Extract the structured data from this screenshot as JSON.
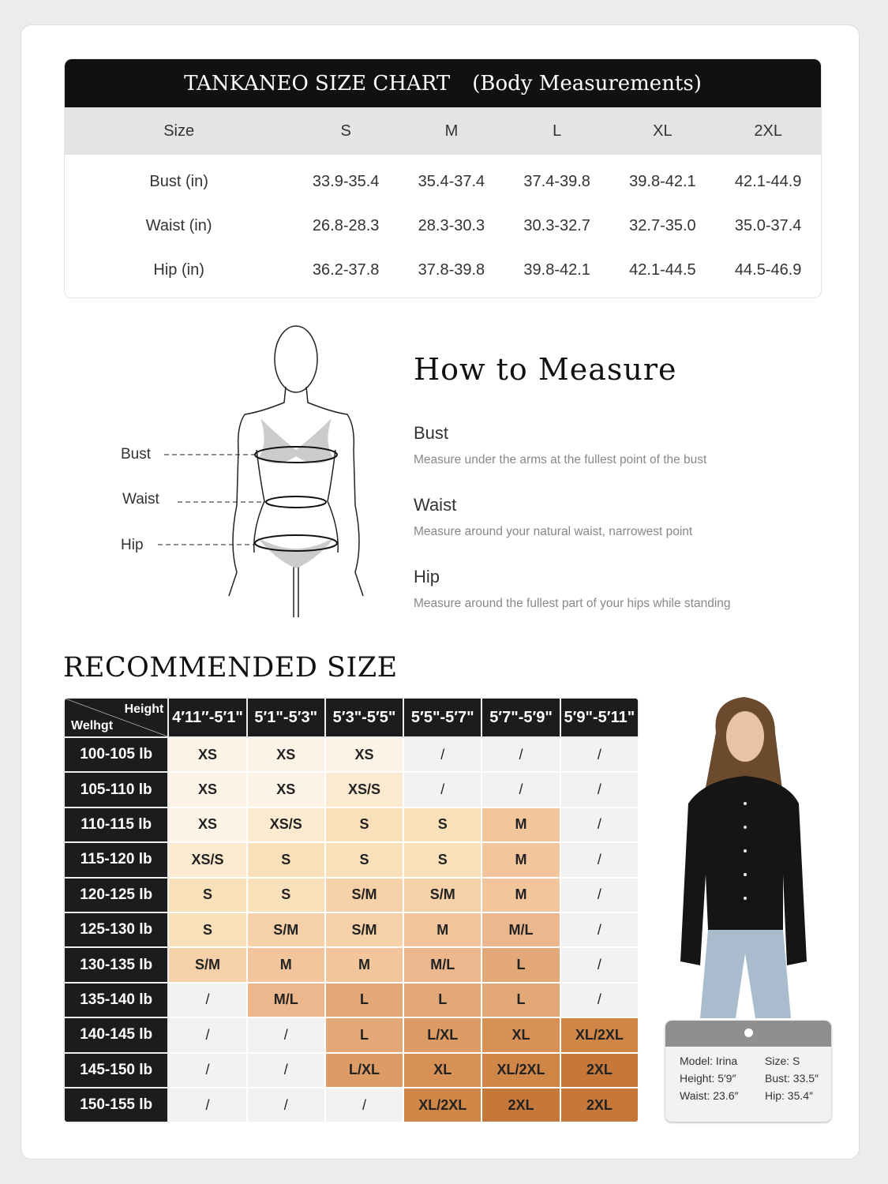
{
  "size_chart": {
    "brand": "TANKANEO SIZE CHART",
    "subtitle": "(Body Measurements)",
    "headers": [
      "Size",
      "S",
      "M",
      "L",
      "XL",
      "2XL"
    ],
    "rows": [
      [
        "Bust (in)",
        "33.9-35.4",
        "35.4-37.4",
        "37.4-39.8",
        "39.8-42.1",
        "42.1-44.9"
      ],
      [
        "Waist (in)",
        "26.8-28.3",
        "28.3-30.3",
        "30.3-32.7",
        "32.7-35.0",
        "35.0-37.4"
      ],
      [
        "Hip (in)",
        "36.2-37.8",
        "37.8-39.8",
        "39.8-42.1",
        "42.1-44.5",
        "44.5-46.9"
      ]
    ]
  },
  "figure_labels": {
    "bust": "Bust",
    "waist": "Waist",
    "hip": "Hip"
  },
  "how_to_measure": {
    "title": "How to Measure",
    "items": [
      {
        "title": "Bust",
        "desc": "Measure under the arms at the fullest point of the bust"
      },
      {
        "title": "Waist",
        "desc": "Measure around your natural waist, narrowest point"
      },
      {
        "title": "Hip",
        "desc": "Measure around the fullest part of your hips while standing"
      }
    ]
  },
  "recommended": {
    "title": "RECOMMENDED SIZE",
    "corner_height": "Height",
    "corner_weight": "Welhgt",
    "heights": [
      "4′11″-5′1\"",
      "5′1\"-5′3\"",
      "5′3\"-5′5\"",
      "5′5\"-5′7\"",
      "5′7\"-5′9\"",
      "5′9\"-5′11\""
    ],
    "rows": [
      {
        "weight": "100-105 lb",
        "sizes": [
          "XS",
          "XS",
          "XS",
          "/",
          "/",
          "/"
        ]
      },
      {
        "weight": "105-110 lb",
        "sizes": [
          "XS",
          "XS",
          "XS/S",
          "/",
          "/",
          "/"
        ]
      },
      {
        "weight": "110-115 lb",
        "sizes": [
          "XS",
          "XS/S",
          "S",
          "S",
          "M",
          "/"
        ]
      },
      {
        "weight": "115-120 lb",
        "sizes": [
          "XS/S",
          "S",
          "S",
          "S",
          "M",
          "/"
        ]
      },
      {
        "weight": "120-125 lb",
        "sizes": [
          "S",
          "S",
          "S/M",
          "S/M",
          "M",
          "/"
        ]
      },
      {
        "weight": "125-130 lb",
        "sizes": [
          "S",
          "S/M",
          "S/M",
          "M",
          "M/L",
          "/"
        ]
      },
      {
        "weight": "130-135 lb",
        "sizes": [
          "S/M",
          "M",
          "M",
          "M/L",
          "L",
          "/"
        ]
      },
      {
        "weight": "135-140 lb",
        "sizes": [
          "/",
          "M/L",
          "L",
          "L",
          "L",
          "/"
        ]
      },
      {
        "weight": "140-145 lb",
        "sizes": [
          "/",
          "/",
          "L",
          "L/XL",
          "XL",
          "XL/2XL"
        ]
      },
      {
        "weight": "145-150 lb",
        "sizes": [
          "/",
          "/",
          "L/XL",
          "XL",
          "XL/2XL",
          "2XL"
        ]
      },
      {
        "weight": "150-155 lb",
        "sizes": [
          "/",
          "/",
          "/",
          "XL/2XL",
          "2XL",
          "2XL"
        ]
      }
    ],
    "colors": {
      "XS": "#fdf3e7",
      "XS/S": "#fbeacf",
      "S": "#f8e0ba",
      "S/M": "#f5d0a8",
      "M": "#f3c59c",
      "M/L": "#ecb78c",
      "L": "#e3a877",
      "L/XL": "#dd9b66",
      "XL": "#d79056",
      "XL/2XL": "#d08646",
      "2XL": "#c6783a",
      "/": "#f2f2f2"
    }
  },
  "model_card": {
    "model": "Model: Irina",
    "size": "Size: S",
    "height": "Height: 5′9″",
    "bust": "Bust: 33.5″",
    "waist": "Waist: 23.6″",
    "hip": "Hip: 35.4″"
  }
}
